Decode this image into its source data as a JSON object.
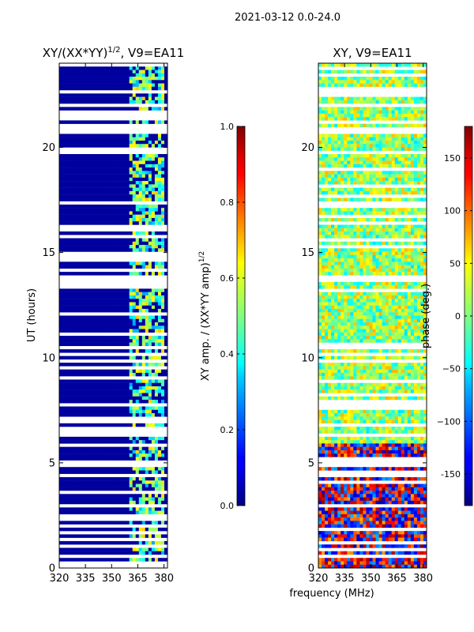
{
  "suptitle": "2021-03-12 0.0-24.0",
  "chart_data": [
    {
      "type": "heatmap",
      "title_base": "XY/(XX*YY)",
      "title_exp": "1/2",
      "title_suffix": ", V9=EA11",
      "ylabel": "UT (hours)",
      "xlim": [
        320,
        382
      ],
      "ylim": [
        0,
        24
      ],
      "xticks": [
        320,
        335,
        350,
        365,
        380
      ],
      "yticks": [
        0,
        5,
        10,
        15,
        20
      ],
      "colorbar": {
        "label_base": "XY amp. / (XX*YY amp)",
        "label_exp": "1/2",
        "range": [
          0.0,
          1.0
        ],
        "ticks": [
          "0.0",
          "0.2",
          "0.4",
          "0.6",
          "0.8",
          "1.0"
        ],
        "colormap": "jet"
      }
    },
    {
      "type": "heatmap",
      "title": "XY, V9=EA11",
      "xlabel": "frequency (MHz)",
      "xlim": [
        320,
        382
      ],
      "ylim": [
        0,
        24
      ],
      "xticks": [
        320,
        335,
        350,
        365,
        380
      ],
      "yticks": [
        0,
        5,
        10,
        15,
        20
      ],
      "colorbar": {
        "label": "phase (deg.)",
        "range": [
          -180,
          180
        ],
        "ticks": [
          "-150",
          "−100",
          "−50",
          "0",
          "50",
          "100",
          "150"
        ],
        "colormap": "jet"
      }
    }
  ]
}
